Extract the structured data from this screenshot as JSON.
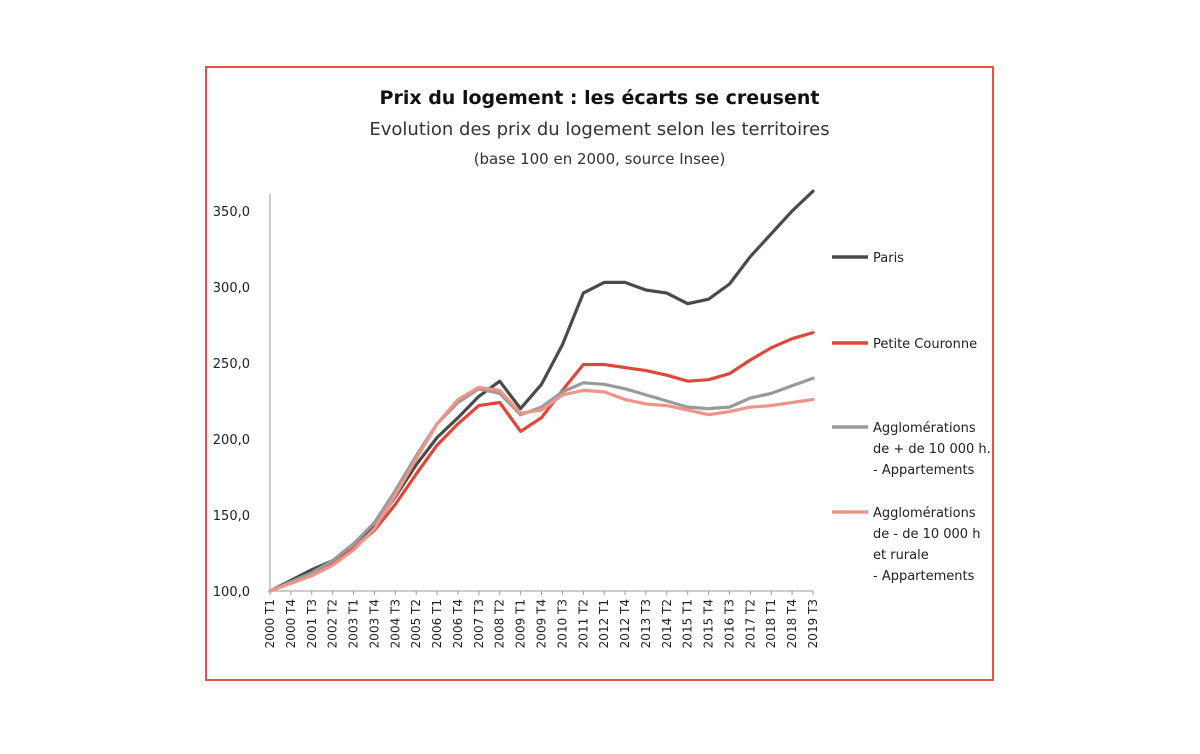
{
  "chart_data": {
    "type": "line",
    "title": "Prix du logement : les écarts se creusent",
    "subtitle": "Evolution des prix du logement selon les territoires",
    "note": "(base 100 en 2000, source Insee)",
    "ylim": [
      100,
      365
    ],
    "yticks": [
      "100,0",
      "150,0",
      "200,0",
      "250,0",
      "300,0",
      "350,0"
    ],
    "ytick_values": [
      100,
      150,
      200,
      250,
      300,
      350
    ],
    "xtick_labels": [
      "2000 T1",
      "2000 T4",
      "2001 T3",
      "2002 T2",
      "2003 T1",
      "2003 T4",
      "2004 T3",
      "2005 T2",
      "2006 T1",
      "2006 T4",
      "2007 T3",
      "2008 T2",
      "2009 T1",
      "2009 T4",
      "2010 T3",
      "2011 T2",
      "2012 T1",
      "2012 T4",
      "2013 T3",
      "2014 T2",
      "2015 T1",
      "2015 T4",
      "2016 T3",
      "2017 T2",
      "2018 T1",
      "2018 T4",
      "2019 T3"
    ],
    "x_first": "2000 T1",
    "x_last": "2019 T3",
    "grid": false,
    "legend_position": "right",
    "series": [
      {
        "name": "Paris",
        "color": "#4a4a4a",
        "points": [
          [
            "2000 T1",
            100
          ],
          [
            "2000 T4",
            107
          ],
          [
            "2001 T3",
            114
          ],
          [
            "2002 T2",
            120
          ],
          [
            "2003 T1",
            131
          ],
          [
            "2003 T4",
            143
          ],
          [
            "2004 T3",
            162
          ],
          [
            "2005 T2",
            183
          ],
          [
            "2006 T1",
            201
          ],
          [
            "2006 T4",
            214
          ],
          [
            "2007 T3",
            228
          ],
          [
            "2008 T2",
            238
          ],
          [
            "2009 T1",
            220
          ],
          [
            "2009 T4",
            236
          ],
          [
            "2010 T3",
            262
          ],
          [
            "2011 T2",
            296
          ],
          [
            "2012 T1",
            303
          ],
          [
            "2012 T4",
            303
          ],
          [
            "2013 T3",
            298
          ],
          [
            "2014 T2",
            296
          ],
          [
            "2015 T1",
            289
          ],
          [
            "2015 T4",
            292
          ],
          [
            "2016 T3",
            302
          ],
          [
            "2017 T2",
            320
          ],
          [
            "2018 T1",
            335
          ],
          [
            "2018 T4",
            350
          ],
          [
            "2019 T3",
            363
          ]
        ]
      },
      {
        "name": "Petite Couronne",
        "color": "#e0473a",
        "points": [
          [
            "2000 T1",
            100
          ],
          [
            "2000 T4",
            106
          ],
          [
            "2001 T3",
            111
          ],
          [
            "2002 T2",
            118
          ],
          [
            "2003 T1",
            128
          ],
          [
            "2003 T4",
            140
          ],
          [
            "2004 T3",
            157
          ],
          [
            "2005 T2",
            177
          ],
          [
            "2006 T1",
            196
          ],
          [
            "2006 T4",
            210
          ],
          [
            "2007 T3",
            222
          ],
          [
            "2008 T2",
            224
          ],
          [
            "2009 T1",
            205
          ],
          [
            "2009 T4",
            214
          ],
          [
            "2010 T3",
            232
          ],
          [
            "2011 T2",
            249
          ],
          [
            "2012 T1",
            249
          ],
          [
            "2012 T4",
            247
          ],
          [
            "2013 T3",
            245
          ],
          [
            "2014 T2",
            242
          ],
          [
            "2015 T1",
            238
          ],
          [
            "2015 T4",
            239
          ],
          [
            "2016 T3",
            243
          ],
          [
            "2017 T2",
            252
          ],
          [
            "2018 T1",
            260
          ],
          [
            "2018 T4",
            266
          ],
          [
            "2019 T3",
            270
          ]
        ]
      },
      {
        "name": "Agglomérations de + de 10 000 h. - Appartements",
        "color": "#9a9a9a",
        "points": [
          [
            "2000 T1",
            100
          ],
          [
            "2000 T4",
            106
          ],
          [
            "2001 T3",
            112
          ],
          [
            "2002 T2",
            120
          ],
          [
            "2003 T1",
            131
          ],
          [
            "2003 T4",
            145
          ],
          [
            "2004 T3",
            166
          ],
          [
            "2005 T2",
            189
          ],
          [
            "2006 T1",
            210
          ],
          [
            "2006 T4",
            224
          ],
          [
            "2007 T3",
            233
          ],
          [
            "2008 T2",
            230
          ],
          [
            "2009 T1",
            216
          ],
          [
            "2009 T4",
            221
          ],
          [
            "2010 T3",
            231
          ],
          [
            "2011 T2",
            237
          ],
          [
            "2012 T1",
            236
          ],
          [
            "2012 T4",
            233
          ],
          [
            "2013 T3",
            229
          ],
          [
            "2014 T2",
            225
          ],
          [
            "2015 T1",
            221
          ],
          [
            "2015 T4",
            220
          ],
          [
            "2016 T3",
            221
          ],
          [
            "2017 T2",
            227
          ],
          [
            "2018 T1",
            230
          ],
          [
            "2018 T4",
            235
          ],
          [
            "2019 T3",
            240
          ]
        ]
      },
      {
        "name": "Agglomérations de - de 10 000 h et rurale - Appartements",
        "color": "#ef9488",
        "points": [
          [
            "2000 T1",
            100
          ],
          [
            "2000 T4",
            105
          ],
          [
            "2001 T3",
            110
          ],
          [
            "2002 T2",
            117
          ],
          [
            "2003 T1",
            127
          ],
          [
            "2003 T4",
            141
          ],
          [
            "2004 T3",
            163
          ],
          [
            "2005 T2",
            187
          ],
          [
            "2006 T1",
            210
          ],
          [
            "2006 T4",
            226
          ],
          [
            "2007 T3",
            234
          ],
          [
            "2008 T2",
            232
          ],
          [
            "2009 T1",
            217
          ],
          [
            "2009 T4",
            219
          ],
          [
            "2010 T3",
            229
          ],
          [
            "2011 T2",
            232
          ],
          [
            "2012 T1",
            231
          ],
          [
            "2012 T4",
            226
          ],
          [
            "2013 T3",
            223
          ],
          [
            "2014 T2",
            222
          ],
          [
            "2015 T1",
            219
          ],
          [
            "2015 T4",
            216
          ],
          [
            "2016 T3",
            218
          ],
          [
            "2017 T2",
            221
          ],
          [
            "2018 T1",
            222
          ],
          [
            "2018 T4",
            224
          ],
          [
            "2019 T3",
            226
          ]
        ]
      }
    ],
    "legend": [
      {
        "lines": [
          "Paris"
        ]
      },
      {
        "lines": [
          "Petite Couronne"
        ]
      },
      {
        "lines": [
          "Agglomérations",
          "de + de 10 000 h.",
          "- Appartements"
        ]
      },
      {
        "lines": [
          "Agglomérations",
          "de - de 10 000 h",
          "et rurale",
          " - Appartements"
        ]
      }
    ]
  }
}
